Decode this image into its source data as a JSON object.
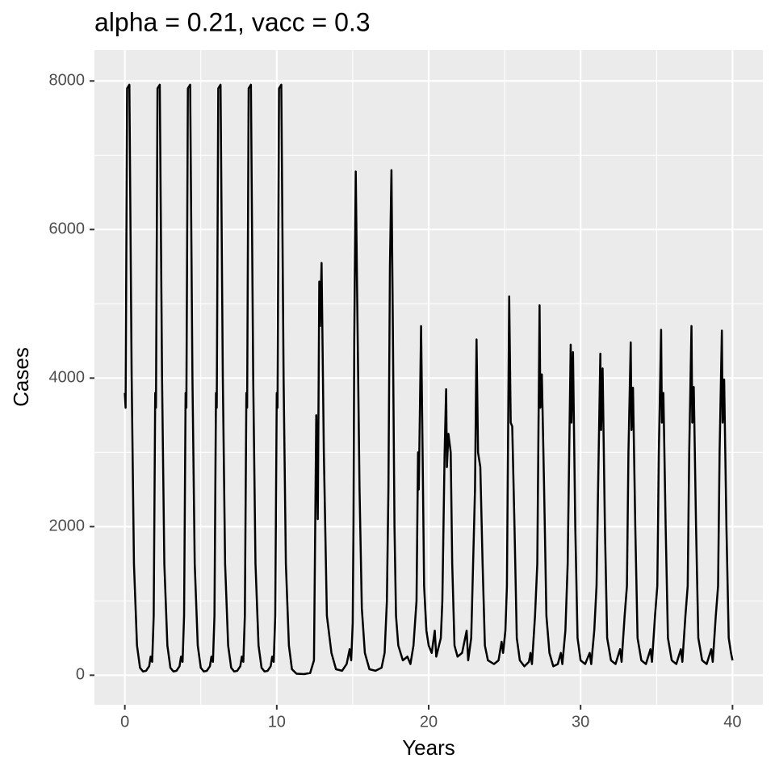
{
  "chart_data": {
    "type": "line",
    "title": "alpha = 0.21, vacc = 0.3",
    "x_label": "Years",
    "y_label": "Cases",
    "color": "#000000",
    "xlim": [
      -2,
      42
    ],
    "ylim": [
      -398,
      8416
    ],
    "xticks": [
      0,
      10,
      20,
      30,
      40
    ],
    "yticks": [
      0,
      2000,
      4000,
      6000,
      8000
    ],
    "xticks_minor": [
      5,
      15,
      25,
      35
    ],
    "yticks_minor": [
      1000,
      3000,
      5000,
      7000
    ],
    "grid": true,
    "x": [
      0,
      0.05,
      0.15,
      0.3,
      0.45,
      0.6,
      0.8,
      1,
      1.2,
      1.4,
      1.6,
      1.7,
      1.8,
      1.9,
      2,
      2.05,
      2.15,
      2.3,
      2.45,
      2.6,
      2.8,
      3,
      3.2,
      3.4,
      3.6,
      3.7,
      3.8,
      3.9,
      4,
      4.05,
      4.15,
      4.3,
      4.45,
      4.6,
      4.8,
      5,
      5.2,
      5.4,
      5.6,
      5.7,
      5.8,
      5.9,
      6,
      6.05,
      6.15,
      6.3,
      6.45,
      6.6,
      6.8,
      7,
      7.2,
      7.4,
      7.6,
      7.7,
      7.8,
      7.9,
      8,
      8.05,
      8.15,
      8.3,
      8.45,
      8.6,
      8.8,
      9,
      9.2,
      9.4,
      9.6,
      9.7,
      9.8,
      9.9,
      10,
      10.05,
      10.15,
      10.3,
      10.45,
      10.6,
      10.8,
      11,
      11.3,
      11.8,
      12.2,
      12.45,
      12.6,
      12.7,
      12.8,
      12.85,
      12.95,
      13.1,
      13.3,
      13.6,
      13.9,
      14.3,
      14.6,
      14.8,
      14.9,
      15,
      15.05,
      15.1,
      15.2,
      15.3,
      15.45,
      15.6,
      15.8,
      16.1,
      16.5,
      16.9,
      17.1,
      17.25,
      17.35,
      17.45,
      17.55,
      17.65,
      17.75,
      17.85,
      18,
      18.3,
      18.6,
      18.8,
      19,
      19.2,
      19.3,
      19.35,
      19.5,
      19.6,
      19.7,
      19.85,
      20,
      20.2,
      20.4,
      20.5,
      20.8,
      20.9,
      21.05,
      21.15,
      21.2,
      21.3,
      21.45,
      21.55,
      21.7,
      21.9,
      22.2,
      22.5,
      22.6,
      22.8,
      22.9,
      23.05,
      23.15,
      23.25,
      23.4,
      23.55,
      23.7,
      23.9,
      24.3,
      24.6,
      24.8,
      24.9,
      25.05,
      25.15,
      25.3,
      25.4,
      25.5,
      25.65,
      25.8,
      26,
      26.3,
      26.6,
      26.7,
      26.8,
      27,
      27.15,
      27.3,
      27.35,
      27.45,
      27.6,
      27.75,
      27.95,
      28.2,
      28.5,
      28.7,
      28.8,
      29,
      29.15,
      29.25,
      29.35,
      29.4,
      29.5,
      29.65,
      29.8,
      30,
      30.3,
      30.6,
      30.7,
      30.9,
      31.05,
      31.15,
      31.3,
      31.35,
      31.45,
      31.6,
      31.75,
      32,
      32.3,
      32.6,
      32.7,
      32.9,
      33.05,
      33.15,
      33.3,
      33.35,
      33.45,
      33.6,
      33.75,
      34,
      34.3,
      34.6,
      34.7,
      34.9,
      35.05,
      35.15,
      35.3,
      35.35,
      35.45,
      35.6,
      35.75,
      36,
      36.3,
      36.6,
      36.7,
      36.9,
      37.05,
      37.15,
      37.3,
      37.35,
      37.45,
      37.6,
      37.75,
      38,
      38.3,
      38.6,
      38.7,
      38.9,
      39.05,
      39.15,
      39.3,
      39.35,
      39.45,
      39.6,
      39.75,
      39.9,
      40
    ],
    "values": [
      3800,
      3600,
      7900,
      7950,
      4000,
      1500,
      400,
      100,
      50,
      60,
      120,
      250,
      180,
      800,
      3800,
      3600,
      7900,
      7950,
      4000,
      1500,
      400,
      100,
      50,
      60,
      120,
      250,
      180,
      800,
      3800,
      3600,
      7900,
      7950,
      4000,
      1500,
      400,
      100,
      50,
      60,
      120,
      250,
      180,
      800,
      3800,
      3600,
      7900,
      7950,
      4000,
      1500,
      400,
      100,
      50,
      60,
      120,
      250,
      180,
      800,
      3800,
      3600,
      7900,
      7950,
      4000,
      1500,
      400,
      100,
      50,
      60,
      120,
      250,
      180,
      800,
      3800,
      3600,
      7900,
      7950,
      4000,
      1500,
      400,
      80,
      20,
      15,
      30,
      200,
      3500,
      2100,
      5300,
      4700,
      5550,
      3000,
      800,
      300,
      80,
      60,
      150,
      350,
      200,
      700,
      2000,
      4500,
      6780,
      5000,
      2500,
      900,
      300,
      80,
      60,
      100,
      300,
      1000,
      2500,
      5500,
      6800,
      4500,
      2000,
      800,
      400,
      200,
      250,
      150,
      400,
      1000,
      3000,
      2500,
      4700,
      3000,
      1200,
      600,
      400,
      300,
      600,
      250,
      500,
      1000,
      3000,
      3850,
      2800,
      3250,
      3000,
      1500,
      400,
      250,
      300,
      600,
      200,
      500,
      1300,
      2500,
      4520,
      3000,
      2800,
      1500,
      400,
      200,
      150,
      200,
      450,
      300,
      600,
      1200,
      5100,
      3400,
      3350,
      2000,
      500,
      200,
      120,
      180,
      300,
      150,
      800,
      1500,
      4980,
      3600,
      4050,
      2500,
      800,
      300,
      120,
      150,
      300,
      150,
      600,
      1500,
      3000,
      4450,
      3400,
      4350,
      2000,
      500,
      200,
      150,
      300,
      150,
      600,
      1200,
      2500,
      4330,
      3300,
      4130,
      2000,
      500,
      200,
      150,
      350,
      180,
      800,
      1200,
      3000,
      4480,
      3300,
      3870,
      2000,
      500,
      200,
      150,
      350,
      180,
      800,
      1200,
      3000,
      4650,
      3400,
      3800,
      2000,
      500,
      200,
      150,
      350,
      180,
      800,
      1200,
      3000,
      4700,
      3400,
      3880,
      2000,
      500,
      200,
      150,
      350,
      180,
      800,
      1200,
      3000,
      4640,
      3400,
      3980,
      2000,
      500,
      300,
      200
    ]
  }
}
